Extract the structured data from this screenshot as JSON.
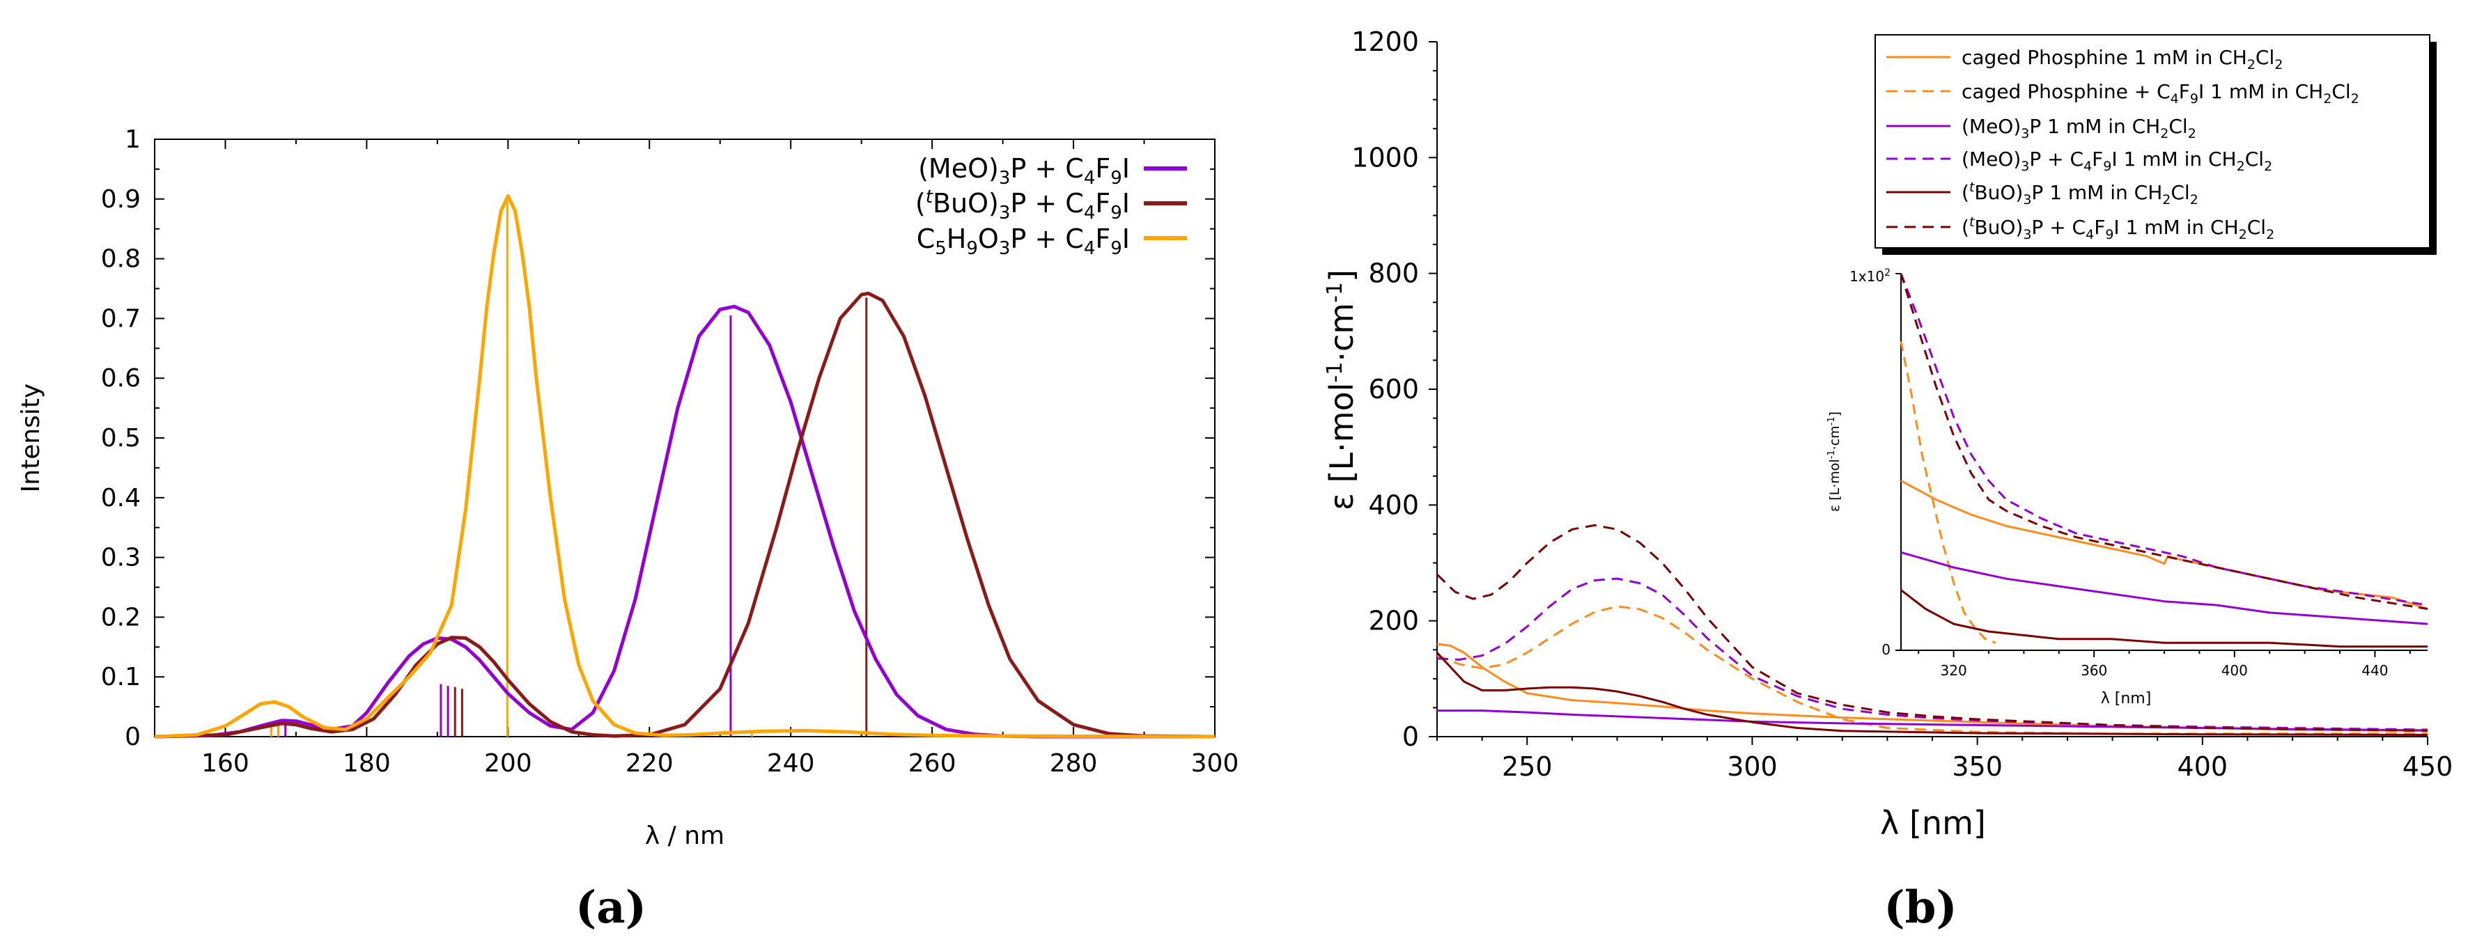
{
  "colors": {
    "meo": "#9400d3",
    "tbuo": "#8b1a1a",
    "c5": "#ffa500",
    "orange_b": "#ff8c1a",
    "purple_b": "#9400d3",
    "darkred_b": "#7a0000"
  },
  "panel_labels": {
    "a": "(a)",
    "b": "(b)"
  },
  "chart_data": [
    {
      "id": "a",
      "type": "line",
      "title": "",
      "xlabel": "λ / nm",
      "ylabel": "Intensity",
      "xlim": [
        150,
        300
      ],
      "ylim": [
        0,
        1
      ],
      "xticks": [
        160,
        180,
        200,
        220,
        240,
        260,
        280,
        300
      ],
      "yticks": [
        0,
        0.1,
        0.2,
        0.3,
        0.4,
        0.5,
        0.6,
        0.7,
        0.8,
        0.9,
        1
      ],
      "ytick_labels": [
        "0",
        "0.1",
        "0.2",
        "0.3",
        "0.4",
        "0.5",
        "0.6",
        "0.7",
        "0.8",
        "0.9",
        "1"
      ],
      "legend_position": "top-right",
      "series": [
        {
          "name": "(MeO)3P + C4F9I",
          "legend": {
            "pre": "(MeO)",
            "s1": "3",
            "mid": "P + C",
            "s2": "4",
            "mid2": "F",
            "s3": "9",
            "post": "I"
          },
          "color_key": "meo",
          "x": [
            150,
            158,
            162,
            165,
            168,
            170,
            172,
            175,
            178,
            180,
            183,
            186,
            188,
            190,
            192,
            194,
            196,
            198,
            200,
            203,
            206,
            209,
            212,
            215,
            218,
            221,
            224,
            227,
            230,
            232,
            234,
            237,
            240,
            243,
            246,
            249,
            252,
            255,
            258,
            262,
            266,
            270,
            275,
            280,
            290,
            300
          ],
          "y": [
            0,
            0.002,
            0.008,
            0.018,
            0.027,
            0.026,
            0.02,
            0.012,
            0.018,
            0.04,
            0.09,
            0.135,
            0.155,
            0.165,
            0.163,
            0.15,
            0.128,
            0.1,
            0.072,
            0.04,
            0.018,
            0.012,
            0.04,
            0.11,
            0.23,
            0.39,
            0.55,
            0.67,
            0.715,
            0.72,
            0.71,
            0.655,
            0.56,
            0.44,
            0.32,
            0.21,
            0.13,
            0.07,
            0.035,
            0.012,
            0.004,
            0.001,
            0,
            0,
            0,
            0
          ],
          "sticks": [
            {
              "x": 167.5,
              "h": 0.028
            },
            {
              "x": 168.5,
              "h": 0.027
            },
            {
              "x": 190.5,
              "h": 0.088
            },
            {
              "x": 191.5,
              "h": 0.085
            },
            {
              "x": 231.5,
              "h": 0.705
            }
          ]
        },
        {
          "name": "(tBuO)3P + C4F9I",
          "legend": {
            "pre": "(",
            "sup": "t",
            "pre2": "BuO)",
            "s1": "3",
            "mid": "P + C",
            "s2": "4",
            "mid2": "F",
            "s3": "9",
            "post": "I"
          },
          "color_key": "tbuo",
          "x": [
            150,
            160,
            165,
            168,
            170,
            172,
            175,
            178,
            181,
            184,
            187,
            190,
            192,
            194,
            196,
            198,
            200,
            203,
            206,
            209,
            212,
            215,
            220,
            225,
            230,
            234,
            238,
            241,
            244,
            247,
            250,
            251,
            253,
            256,
            259,
            262,
            265,
            268,
            271,
            275,
            280,
            285,
            290,
            300
          ],
          "y": [
            0,
            0.003,
            0.015,
            0.022,
            0.02,
            0.014,
            0.008,
            0.012,
            0.03,
            0.07,
            0.12,
            0.155,
            0.166,
            0.165,
            0.15,
            0.125,
            0.095,
            0.055,
            0.025,
            0.008,
            0.003,
            0.001,
            0.003,
            0.02,
            0.08,
            0.19,
            0.35,
            0.48,
            0.6,
            0.7,
            0.74,
            0.742,
            0.73,
            0.67,
            0.57,
            0.45,
            0.33,
            0.22,
            0.13,
            0.06,
            0.02,
            0.005,
            0.001,
            0
          ],
          "sticks": [
            {
              "x": 192.5,
              "h": 0.083
            },
            {
              "x": 193.5,
              "h": 0.08
            },
            {
              "x": 250.7,
              "h": 0.735
            }
          ]
        },
        {
          "name": "C5H9O3P + C4F9I",
          "legend": {
            "pre": "C",
            "s1": "5",
            "mid": "H",
            "s2": "9",
            "mid2": "O",
            "s3": "3",
            "post": "P + C",
            "s4": "4",
            "post2": "F",
            "s5": "9",
            "post3": "I"
          },
          "color_key": "c5",
          "x": [
            150,
            156,
            160,
            163,
            165,
            167,
            169,
            171,
            174,
            177,
            180,
            183,
            186,
            189,
            192,
            194,
            196,
            197,
            198,
            199,
            200,
            201,
            202,
            203,
            204,
            206,
            208,
            210,
            212,
            215,
            218,
            222,
            226,
            230,
            236,
            242,
            248,
            254,
            260,
            270,
            300
          ],
          "y": [
            0,
            0.003,
            0.018,
            0.04,
            0.055,
            0.058,
            0.05,
            0.033,
            0.015,
            0.012,
            0.03,
            0.065,
            0.1,
            0.14,
            0.22,
            0.38,
            0.6,
            0.72,
            0.81,
            0.88,
            0.905,
            0.88,
            0.81,
            0.72,
            0.6,
            0.4,
            0.23,
            0.12,
            0.06,
            0.02,
            0.006,
            0.002,
            0.003,
            0.006,
            0.009,
            0.01,
            0.008,
            0.004,
            0.002,
            0.001,
            0
          ],
          "sticks": [
            {
              "x": 166.5,
              "h": 0.02
            },
            {
              "x": 167.5,
              "h": 0.018
            },
            {
              "x": 199.9,
              "h": 0.895
            },
            {
              "x": 234.5,
              "h": 0.005
            }
          ]
        }
      ]
    },
    {
      "id": "b",
      "type": "line",
      "title": "",
      "xlabel": "λ [nm]",
      "ylabel": "ε [L·mol-1·cm-1]",
      "ylabel_parts": {
        "pre": "ε [L·mol",
        "sup1": "-1",
        "mid": "·cm",
        "sup2": "-1",
        "post": "]"
      },
      "xlim": [
        230,
        450
      ],
      "ylim": [
        0,
        1200
      ],
      "xticks": [
        250,
        300,
        350,
        400,
        450
      ],
      "yticks": [
        0,
        200,
        400,
        600,
        800,
        1000,
        1200
      ],
      "legend_position": "top-right",
      "series": [
        {
          "name": "caged Phosphine 1 mM in CH2Cl2",
          "style": "solid",
          "color_key": "orange_b",
          "legend": {
            "pre": "caged Phosphine 1 mM in CH",
            "s1": "2",
            "mid": "Cl",
            "s2": "2",
            "post": ""
          },
          "x": [
            230,
            233,
            236,
            240,
            245,
            250,
            260,
            270,
            280,
            290,
            300,
            320,
            350,
            380,
            400,
            420,
            450
          ],
          "y": [
            160,
            157,
            145,
            120,
            95,
            75,
            63,
            58,
            52,
            45,
            40,
            33,
            25,
            18,
            15,
            12,
            10
          ]
        },
        {
          "name": "caged Phosphine + C4F9I 1 mM in CH2Cl2",
          "style": "dashed",
          "color_key": "orange_b",
          "legend": {
            "pre": "caged Phosphine + C",
            "s1": "4",
            "mid": "F",
            "s2": "9",
            "mid2": "I 1 mM in CH",
            "s3": "2",
            "mid3": "Cl",
            "s4": "2",
            "post": ""
          },
          "x": [
            230,
            235,
            240,
            245,
            250,
            255,
            260,
            265,
            270,
            275,
            280,
            285,
            290,
            300,
            310,
            320,
            330,
            350,
            380,
            400,
            450
          ],
          "y": [
            140,
            125,
            118,
            125,
            145,
            170,
            195,
            215,
            225,
            220,
            205,
            180,
            150,
            100,
            60,
            30,
            15,
            8,
            5,
            5,
            5
          ]
        },
        {
          "name": "(MeO)3P 1 mM in CH2Cl2",
          "style": "solid",
          "color_key": "purple_b",
          "legend": {
            "pre": "(MeO)",
            "s1": "3",
            "mid": "P 1 mM in CH",
            "s2": "2",
            "mid2": "Cl",
            "s3": "2",
            "post": ""
          },
          "x": [
            230,
            240,
            250,
            260,
            270,
            280,
            290,
            300,
            320,
            350,
            380,
            400,
            420,
            450
          ],
          "y": [
            45,
            45,
            42,
            38,
            35,
            32,
            29,
            26,
            23,
            20,
            17,
            15,
            13,
            11
          ]
        },
        {
          "name": "(MeO)3P + C4F9I 1 mM in CH2Cl2",
          "style": "dashed",
          "color_key": "purple_b",
          "legend": {
            "pre": "(MeO)",
            "s1": "3",
            "mid": "P + C",
            "s2": "4",
            "mid2": "F",
            "s3": "9",
            "mid3": "I 1 mM in CH",
            "s4": "2",
            "mid4": "Cl",
            "s5": "2",
            "post": ""
          },
          "x": [
            230,
            235,
            240,
            245,
            250,
            255,
            260,
            265,
            270,
            275,
            280,
            285,
            290,
            300,
            310,
            320,
            330,
            340,
            350,
            380,
            400,
            450
          ],
          "y": [
            135,
            133,
            140,
            160,
            190,
            225,
            255,
            270,
            273,
            265,
            245,
            210,
            170,
            105,
            70,
            48,
            38,
            32,
            28,
            20,
            17,
            12
          ]
        },
        {
          "name": "(tBuO)3P 1 mM in CH2Cl2",
          "style": "solid",
          "color_key": "darkred_b",
          "legend": {
            "pre": "(",
            "sup": "t",
            "pre2": "BuO)",
            "s1": "3",
            "mid": "P 1 mM in CH",
            "s2": "2",
            "mid2": "Cl",
            "s3": "2",
            "post": ""
          },
          "x": [
            230,
            233,
            236,
            240,
            245,
            250,
            255,
            260,
            265,
            270,
            275,
            280,
            285,
            290,
            300,
            310,
            320,
            350,
            400,
            450
          ],
          "y": [
            145,
            120,
            95,
            80,
            80,
            83,
            85,
            85,
            83,
            78,
            70,
            60,
            48,
            38,
            25,
            15,
            10,
            6,
            4,
            3
          ]
        },
        {
          "name": "(tBuO)3P + C4F9I 1 mM in CH2Cl2",
          "style": "dashed",
          "color_key": "darkred_b",
          "legend": {
            "pre": "(",
            "sup": "t",
            "pre2": "BuO)",
            "s1": "3",
            "mid": "P + C",
            "s2": "4",
            "mid2": "F",
            "s3": "9",
            "mid3": "I 1 mM in CH",
            "s4": "2",
            "mid4": "Cl",
            "s5": "2",
            "post": ""
          },
          "x": [
            230,
            234,
            238,
            242,
            246,
            250,
            255,
            260,
            265,
            270,
            275,
            280,
            285,
            290,
            300,
            310,
            320,
            330,
            340,
            350,
            380,
            400,
            450
          ],
          "y": [
            280,
            250,
            238,
            245,
            268,
            300,
            335,
            358,
            365,
            358,
            335,
            300,
            255,
            205,
            120,
            75,
            55,
            42,
            35,
            30,
            20,
            15,
            10
          ]
        }
      ],
      "inset": {
        "xlabel": "λ [nm]",
        "ylabel": "ε [L·mol-1·cm-1]",
        "ylabel_parts": {
          "pre": "ε [L·mol",
          "sup1": "-1",
          "mid": "·cm",
          "sup2": "-1",
          "post": "]"
        },
        "xlim": [
          305,
          455
        ],
        "ylim": [
          0,
          100
        ],
        "xticks": [
          320,
          360,
          400,
          440
        ],
        "ytick_labels": [
          {
            "v": 0,
            "t": "0"
          },
          {
            "v": 100,
            "t": "1x10",
            "sup": "2"
          }
        ],
        "series": [
          {
            "color_key": "orange_b",
            "style": "solid",
            "x": [
              305,
              315,
              325,
              335,
              345,
              355,
              365,
              375,
              380,
              381,
              385,
              395,
              405,
              415,
              425,
              435,
              445,
              455
            ],
            "y": [
              45,
              40,
              36,
              33,
              31,
              29,
              27,
              25,
              23,
              25,
              24,
              22,
              20,
              18,
              16,
              15,
              14,
              11
            ]
          },
          {
            "color_key": "orange_b",
            "style": "dashed",
            "x": [
              305,
              308,
              311,
              314,
              317,
              320,
              323,
              326,
              329,
              332
            ],
            "y": [
              82,
              68,
              52,
              40,
              28,
              18,
              10,
              6,
              3,
              2
            ]
          },
          {
            "color_key": "purple_b",
            "style": "solid",
            "x": [
              305,
              320,
              335,
              350,
              365,
              380,
              395,
              410,
              425,
              440,
              455
            ],
            "y": [
              26,
              22,
              19,
              17,
              15,
              13,
              12,
              10,
              9,
              8,
              7
            ]
          },
          {
            "color_key": "purple_b",
            "style": "dashed",
            "x": [
              305,
              310,
              315,
              320,
              325,
              330,
              335,
              345,
              355,
              365,
              375,
              385,
              395,
              405,
              420,
              435,
              455
            ],
            "y": [
              100,
              88,
              75,
              62,
              52,
              45,
              40,
              35,
              31,
              29,
              27,
              25,
              22,
              20,
              17,
              15,
              12
            ]
          },
          {
            "color_key": "darkred_b",
            "style": "solid",
            "x": [
              305,
              312,
              320,
              330,
              340,
              350,
              365,
              380,
              395,
              410,
              430,
              455
            ],
            "y": [
              16,
              11,
              7,
              5,
              4,
              3,
              3,
              2,
              2,
              2,
              1,
              1
            ]
          },
          {
            "color_key": "darkred_b",
            "style": "dashed",
            "x": [
              305,
              310,
              315,
              320,
              325,
              330,
              335,
              345,
              355,
              365,
              375,
              385,
              395,
              405,
              420,
              435,
              455
            ],
            "y": [
              100,
              85,
              70,
              57,
              47,
              40,
              37,
              33,
              30,
              28,
              26,
              24,
              22,
              20,
              17,
              14,
              11
            ]
          }
        ]
      }
    }
  ]
}
